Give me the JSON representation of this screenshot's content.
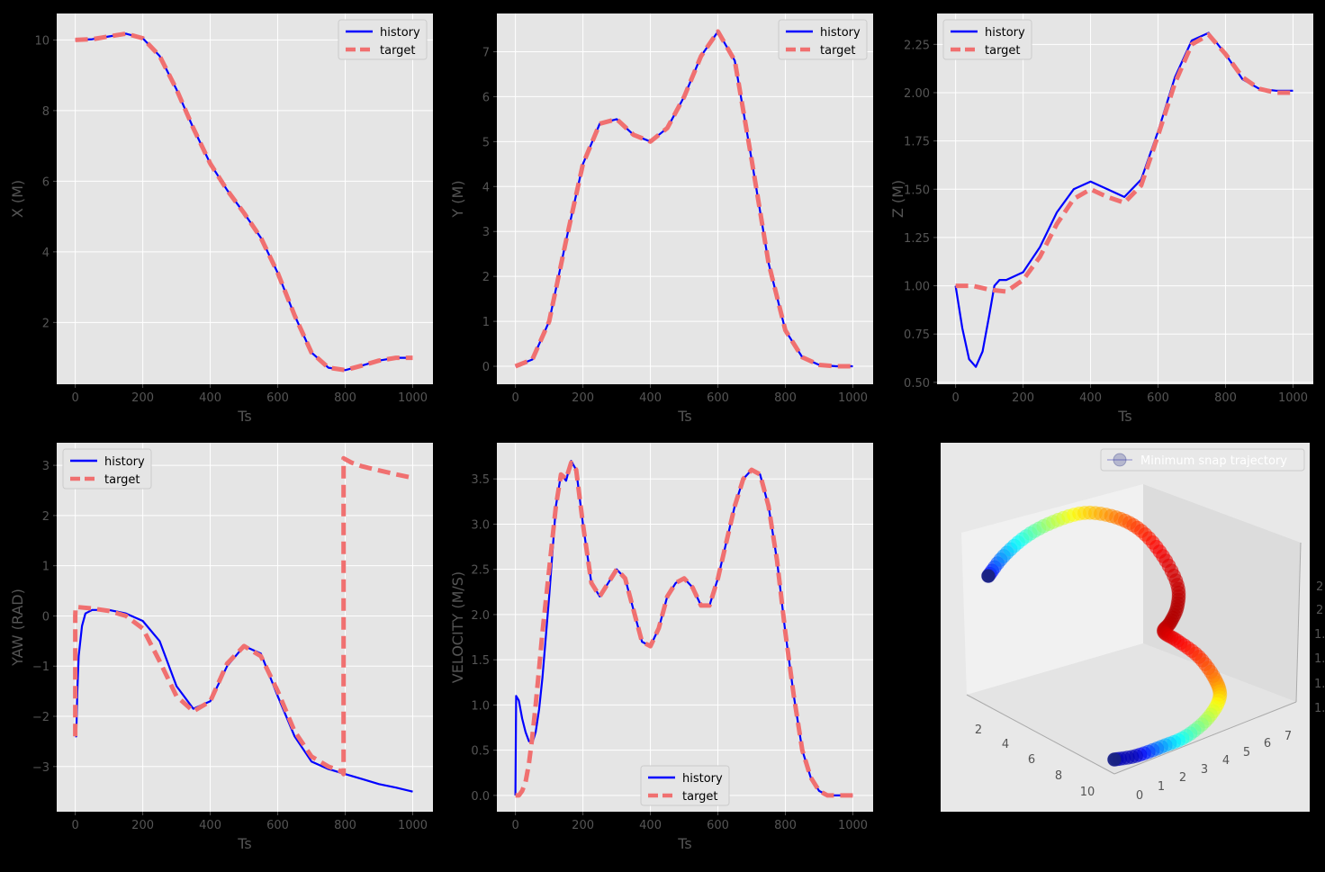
{
  "figure": {
    "background": "#000000",
    "axes_background": "#e5e5e5",
    "grid_color": "#ffffff"
  },
  "colors": {
    "history": "#0000ff",
    "target": "#f07070"
  },
  "chart_data": [
    {
      "id": "x",
      "type": "line",
      "xlabel": "Ts",
      "ylabel": "X (M)",
      "xlim": [
        -55,
        1060
      ],
      "ylim": [
        0.25,
        10.75
      ],
      "xticks": [
        0,
        200,
        400,
        600,
        800,
        1000
      ],
      "yticks": [
        2,
        4,
        6,
        8,
        10
      ],
      "ytick_labels": [
        "2",
        "4",
        "6",
        "8",
        "10"
      ],
      "legend": "top-right",
      "series": [
        {
          "name": "history",
          "style": "solid",
          "x": [
            0,
            50,
            100,
            150,
            200,
            250,
            300,
            350,
            400,
            450,
            500,
            550,
            600,
            650,
            700,
            750,
            800,
            850,
            900,
            950,
            1000
          ],
          "y": [
            10.0,
            10.02,
            10.1,
            10.18,
            10.05,
            9.55,
            8.6,
            7.5,
            6.5,
            5.75,
            5.1,
            4.4,
            3.4,
            2.2,
            1.15,
            0.72,
            0.65,
            0.78,
            0.92,
            1.0,
            1.0
          ]
        },
        {
          "name": "target",
          "style": "dashed",
          "x": [
            0,
            50,
            100,
            150,
            200,
            250,
            300,
            350,
            400,
            450,
            500,
            550,
            600,
            650,
            700,
            750,
            800,
            850,
            900,
            950,
            1000
          ],
          "y": [
            10.0,
            10.02,
            10.1,
            10.18,
            10.05,
            9.55,
            8.6,
            7.5,
            6.5,
            5.75,
            5.1,
            4.4,
            3.4,
            2.2,
            1.15,
            0.72,
            0.65,
            0.78,
            0.92,
            1.0,
            1.0
          ]
        }
      ]
    },
    {
      "id": "y",
      "type": "line",
      "xlabel": "Ts",
      "ylabel": "Y (M)",
      "xlim": [
        -55,
        1060
      ],
      "ylim": [
        -0.4,
        7.85
      ],
      "xticks": [
        0,
        200,
        400,
        600,
        800,
        1000
      ],
      "yticks": [
        0,
        1,
        2,
        3,
        4,
        5,
        6,
        7
      ],
      "ytick_labels": [
        "0",
        "1",
        "2",
        "3",
        "4",
        "5",
        "6",
        "7"
      ],
      "legend": "top-right",
      "series": [
        {
          "name": "history",
          "style": "solid",
          "x": [
            0,
            50,
            100,
            150,
            200,
            250,
            300,
            350,
            400,
            450,
            500,
            550,
            600,
            650,
            700,
            750,
            800,
            850,
            900,
            950,
            1000
          ],
          "y": [
            0,
            0.15,
            1.0,
            2.8,
            4.5,
            5.4,
            5.5,
            5.15,
            5.0,
            5.3,
            6.0,
            6.9,
            7.45,
            6.8,
            4.6,
            2.3,
            0.8,
            0.2,
            0.03,
            0,
            0
          ]
        },
        {
          "name": "target",
          "style": "dashed",
          "x": [
            0,
            50,
            100,
            150,
            200,
            250,
            300,
            350,
            400,
            450,
            500,
            550,
            600,
            650,
            700,
            750,
            800,
            850,
            900,
            950,
            1000
          ],
          "y": [
            0,
            0.15,
            1.0,
            2.8,
            4.5,
            5.4,
            5.5,
            5.15,
            5.0,
            5.3,
            6.0,
            6.9,
            7.45,
            6.8,
            4.6,
            2.3,
            0.8,
            0.2,
            0.03,
            0,
            0
          ]
        }
      ]
    },
    {
      "id": "z",
      "type": "line",
      "xlabel": "Ts",
      "ylabel": "Z (M)",
      "xlim": [
        -55,
        1060
      ],
      "ylim": [
        0.49,
        2.41
      ],
      "xticks": [
        0,
        200,
        400,
        600,
        800,
        1000
      ],
      "yticks": [
        0.5,
        0.75,
        1.0,
        1.25,
        1.5,
        1.75,
        2.0,
        2.25
      ],
      "ytick_labels": [
        "0.50",
        "0.75",
        "1.00",
        "1.25",
        "1.50",
        "1.75",
        "2.00",
        "2.25"
      ],
      "legend": "top-left",
      "series": [
        {
          "name": "history",
          "style": "solid",
          "x": [
            0,
            20,
            40,
            60,
            80,
            100,
            115,
            130,
            150,
            200,
            250,
            300,
            350,
            400,
            450,
            500,
            550,
            600,
            650,
            700,
            750,
            800,
            850,
            900,
            950,
            1000
          ],
          "y": [
            1.0,
            0.78,
            0.62,
            0.58,
            0.66,
            0.85,
            1.0,
            1.03,
            1.03,
            1.07,
            1.2,
            1.38,
            1.5,
            1.54,
            1.5,
            1.46,
            1.55,
            1.8,
            2.08,
            2.27,
            2.31,
            2.2,
            2.07,
            2.02,
            2.01,
            2.01
          ]
        },
        {
          "name": "target",
          "style": "dashed",
          "x": [
            0,
            50,
            100,
            150,
            200,
            250,
            300,
            350,
            400,
            450,
            500,
            550,
            600,
            650,
            700,
            750,
            800,
            850,
            900,
            950,
            1000
          ],
          "y": [
            1.0,
            1.0,
            0.98,
            0.97,
            1.03,
            1.15,
            1.32,
            1.45,
            1.5,
            1.46,
            1.43,
            1.52,
            1.78,
            2.05,
            2.25,
            2.3,
            2.2,
            2.08,
            2.02,
            2.0,
            2.0
          ]
        }
      ]
    },
    {
      "id": "yaw",
      "type": "line",
      "xlabel": "Ts",
      "ylabel": "YAW (RAD)",
      "xlim": [
        -55,
        1060
      ],
      "ylim": [
        -3.9,
        3.45
      ],
      "xticks": [
        0,
        200,
        400,
        600,
        800,
        1000
      ],
      "yticks": [
        -3,
        -2,
        -1,
        0,
        1,
        2,
        3
      ],
      "ytick_labels": [
        "−3",
        "−2",
        "−1",
        "0",
        "1",
        "2",
        "3"
      ],
      "legend": "top-left",
      "series": [
        {
          "name": "history",
          "style": "solid",
          "x": [
            0,
            3,
            6,
            10,
            20,
            30,
            50,
            100,
            150,
            200,
            250,
            300,
            350,
            400,
            450,
            500,
            550,
            600,
            650,
            700,
            750,
            800,
            850,
            900,
            950,
            1000
          ],
          "y": [
            -2.4,
            -2.4,
            -1.5,
            -0.8,
            -0.2,
            0.05,
            0.12,
            0.12,
            0.05,
            -0.1,
            -0.5,
            -1.4,
            -1.85,
            -1.7,
            -1.0,
            -0.6,
            -0.75,
            -1.6,
            -2.4,
            -2.9,
            -3.05,
            -3.15,
            -3.25,
            -3.35,
            -3.42,
            -3.5
          ]
        },
        {
          "name": "target",
          "style": "dashed",
          "x": [
            0,
            0,
            1,
            50,
            100,
            150,
            200,
            250,
            300,
            350,
            400,
            450,
            500,
            550,
            600,
            650,
            700,
            750,
            790,
            795,
            795,
            820,
            850,
            900,
            950,
            1000
          ],
          "y": [
            -2.4,
            0.0,
            0.18,
            0.15,
            0.1,
            0.0,
            -0.25,
            -0.9,
            -1.6,
            -1.9,
            -1.7,
            -0.95,
            -0.6,
            -0.8,
            -1.5,
            -2.3,
            -2.8,
            -3.0,
            -3.1,
            -3.15,
            3.14,
            3.05,
            2.98,
            2.9,
            2.82,
            2.75
          ]
        }
      ]
    },
    {
      "id": "vel",
      "type": "line",
      "xlabel": "Ts",
      "ylabel": "VELOCITY (M/S)",
      "xlim": [
        -55,
        1060
      ],
      "ylim": [
        -0.18,
        3.9
      ],
      "xticks": [
        0,
        200,
        400,
        600,
        800,
        1000
      ],
      "yticks": [
        0,
        0.5,
        1.0,
        1.5,
        2.0,
        2.5,
        3.0,
        3.5
      ],
      "ytick_labels": [
        "0.0",
        "0.5",
        "1.0",
        "1.5",
        "2.0",
        "2.5",
        "3.0",
        "3.5"
      ],
      "legend": "bottom-center",
      "series": [
        {
          "name": "history",
          "style": "solid",
          "x": [
            0,
            2,
            10,
            20,
            30,
            40,
            50,
            60,
            70,
            80,
            100,
            120,
            135,
            150,
            165,
            180,
            200,
            225,
            250,
            275,
            300,
            325,
            350,
            375,
            400,
            425,
            450,
            475,
            500,
            525,
            550,
            575,
            600,
            625,
            650,
            675,
            700,
            725,
            750,
            775,
            800,
            825,
            850,
            875,
            900,
            925,
            950,
            975,
            1000
          ],
          "y": [
            0.0,
            1.1,
            1.05,
            0.85,
            0.7,
            0.6,
            0.58,
            0.7,
            0.95,
            1.3,
            2.2,
            3.2,
            3.55,
            3.48,
            3.7,
            3.6,
            3.0,
            2.35,
            2.2,
            2.35,
            2.5,
            2.4,
            2.05,
            1.7,
            1.65,
            1.85,
            2.2,
            2.35,
            2.4,
            2.3,
            2.1,
            2.1,
            2.4,
            2.8,
            3.2,
            3.5,
            3.6,
            3.55,
            3.2,
            2.6,
            1.8,
            1.1,
            0.5,
            0.2,
            0.05,
            0.0,
            0.0,
            0.0,
            0.0
          ]
        },
        {
          "name": "target",
          "style": "dashed",
          "x": [
            0,
            10,
            20,
            30,
            40,
            50,
            60,
            70,
            80,
            100,
            120,
            135,
            150,
            165,
            180,
            200,
            225,
            250,
            275,
            300,
            325,
            350,
            375,
            400,
            425,
            450,
            475,
            500,
            525,
            550,
            575,
            600,
            625,
            650,
            675,
            700,
            725,
            750,
            775,
            800,
            825,
            850,
            875,
            900,
            925,
            950,
            975,
            1000
          ],
          "y": [
            0.0,
            0.0,
            0.05,
            0.15,
            0.35,
            0.65,
            1.0,
            1.4,
            1.8,
            2.5,
            3.2,
            3.55,
            3.5,
            3.68,
            3.6,
            3.0,
            2.35,
            2.2,
            2.35,
            2.5,
            2.4,
            2.05,
            1.7,
            1.65,
            1.85,
            2.2,
            2.35,
            2.4,
            2.3,
            2.1,
            2.1,
            2.4,
            2.8,
            3.2,
            3.5,
            3.6,
            3.55,
            3.2,
            2.6,
            1.8,
            1.1,
            0.5,
            0.2,
            0.05,
            0.0,
            0.0,
            0.0,
            0.0
          ]
        }
      ]
    },
    {
      "id": "traj3d",
      "type": "scatter",
      "legend": "top-right",
      "series": [
        {
          "name": "Minimum snap trajectory"
        }
      ],
      "xtick_labels": [
        "2",
        "4",
        "6",
        "8",
        "10"
      ],
      "ytick_labels": [
        "0",
        "1",
        "2",
        "3",
        "4",
        "5",
        "6",
        "7"
      ],
      "ztick_labels": [
        "1.0",
        "1.",
        "1.",
        "1.",
        "2",
        "2"
      ]
    }
  ]
}
